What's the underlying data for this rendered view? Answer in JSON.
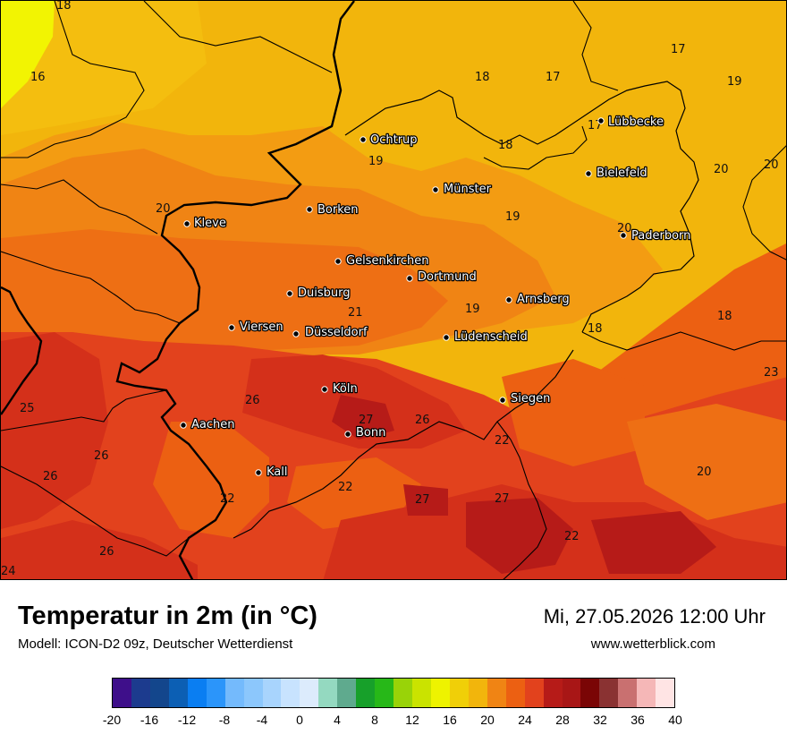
{
  "title": "Temperatur in 2m (in °C)",
  "subtitle": "Modell: ICON-D2 09z, Deutscher Wetterdienst",
  "datetime": "Mi, 27.05.2026 12:00 Uhr",
  "website": "www.wetterblick.com",
  "cities": [
    {
      "name": "Lübbecke"
    },
    {
      "name": "Ochtrup"
    },
    {
      "name": "Bielefeld"
    },
    {
      "name": "Münster"
    },
    {
      "name": "Borken"
    },
    {
      "name": "Kleve"
    },
    {
      "name": "Paderborn"
    },
    {
      "name": "Gelsenkirchen"
    },
    {
      "name": "Dortmund"
    },
    {
      "name": "Duisburg"
    },
    {
      "name": "Arnsberg"
    },
    {
      "name": "Viersen"
    },
    {
      "name": "Düsseldorf"
    },
    {
      "name": "Lüdenscheid"
    },
    {
      "name": "Köln"
    },
    {
      "name": "Siegen"
    },
    {
      "name": "Aachen"
    },
    {
      "name": "Bonn"
    },
    {
      "name": "Kall"
    }
  ],
  "temperature_values": [
    "18",
    "16",
    "17",
    "18",
    "17",
    "19",
    "17",
    "18",
    "19",
    "20",
    "20",
    "19",
    "20",
    "20",
    "21",
    "19",
    "18",
    "18",
    "23",
    "26",
    "25",
    "26",
    "26",
    "27",
    "26",
    "22",
    "22",
    "20",
    "26",
    "22",
    "27",
    "27",
    "22",
    "26",
    "24"
  ],
  "colors": {
    "t16": "#f4be0f",
    "t17": "#f4be0f",
    "t18": "#f2b50c",
    "t19": "#f39c12",
    "t20": "#f08414",
    "t21": "#ee6f14",
    "t22": "#ec6012",
    "t24": "#e2421d",
    "t26": "#d4301a",
    "t28": "#b61b18",
    "hot_yellow": "#f2f402",
    "lemon": "#e8f000",
    "border": "#000000"
  },
  "legend": {
    "colors": [
      "#3e0f8a",
      "#1c3b8e",
      "#13468c",
      "#0c5fb4",
      "#0a7ef2",
      "#2b95fa",
      "#74bafc",
      "#8cc7fc",
      "#a8d4fd",
      "#c8e3fe",
      "#dcebfc",
      "#94d9c0",
      "#5faa8e",
      "#17a02a",
      "#27b818",
      "#99d308",
      "#cae300",
      "#eef300",
      "#f0cf08",
      "#f2b50c",
      "#f08414",
      "#ec6012",
      "#e2421d",
      "#b61b18",
      "#a81616",
      "#7a0505",
      "#8a3232",
      "#c97070",
      "#f5b7b7",
      "#ffe4e4"
    ],
    "ticks": [
      "-20",
      "-16",
      "-12",
      "-8",
      "-4",
      "0",
      "4",
      "8",
      "12",
      "16",
      "20",
      "24",
      "28",
      "32",
      "36",
      "40"
    ]
  }
}
